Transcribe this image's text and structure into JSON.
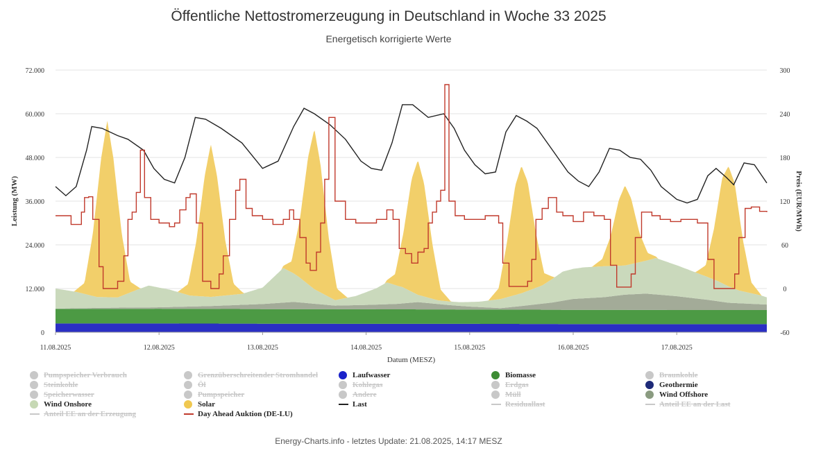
{
  "header": {
    "title": "Öffentliche Nettostromerzeugung in Deutschland in Woche 33 2025",
    "subtitle": "Energetisch korrigierte Werte"
  },
  "footer": {
    "text": "Energy-Charts.info - letztes Update: 21.08.2025, 14:17 MESZ"
  },
  "legend": [
    {
      "label": "Pumpspeicher Verbrauch",
      "active": false,
      "kind": "circle",
      "color": "#c8c8c8"
    },
    {
      "label": "Grenzüberschreitender Stromhandel",
      "active": false,
      "kind": "circle",
      "color": "#c8c8c8"
    },
    {
      "label": "Laufwasser",
      "active": true,
      "kind": "circle",
      "color": "#1a22c9"
    },
    {
      "label": "Biomasse",
      "active": true,
      "kind": "circle",
      "color": "#3d8c34"
    },
    {
      "label": "Braunkohle",
      "active": false,
      "kind": "circle",
      "color": "#c8c8c8"
    },
    {
      "label": "Steinkohle",
      "active": false,
      "kind": "circle",
      "color": "#c8c8c8"
    },
    {
      "label": "Öl",
      "active": false,
      "kind": "circle",
      "color": "#c8c8c8"
    },
    {
      "label": "Kohlegas",
      "active": false,
      "kind": "circle",
      "color": "#c8c8c8"
    },
    {
      "label": "Erdgas",
      "active": false,
      "kind": "circle",
      "color": "#c8c8c8"
    },
    {
      "label": "Geothermie",
      "active": true,
      "kind": "circle",
      "color": "#1e2a78"
    },
    {
      "label": "Speicherwasser",
      "active": false,
      "kind": "circle",
      "color": "#c8c8c8"
    },
    {
      "label": "Pumpspeicher",
      "active": false,
      "kind": "circle",
      "color": "#c8c8c8"
    },
    {
      "label": "Andere",
      "active": false,
      "kind": "circle",
      "color": "#c8c8c8"
    },
    {
      "label": "Müll",
      "active": false,
      "kind": "circle",
      "color": "#c8c8c8"
    },
    {
      "label": "Wind Offshore",
      "active": true,
      "kind": "circle",
      "color": "#8a9b80"
    },
    {
      "label": "Wind Onshore",
      "active": true,
      "kind": "circle",
      "color": "#c6d8b4"
    },
    {
      "label": "Solar",
      "active": true,
      "kind": "circle",
      "color": "#f0c850"
    },
    {
      "label": "Last",
      "active": true,
      "kind": "line",
      "color": "#222222"
    },
    {
      "label": "Residuallast",
      "active": false,
      "kind": "line",
      "color": "#c8c8c8"
    },
    {
      "label": "Anteil EE an der Last",
      "active": false,
      "kind": "line",
      "color": "#c8c8c8"
    },
    {
      "label": "Anteil EE an der Erzeugung",
      "active": false,
      "kind": "line",
      "color": "#c8c8c8"
    },
    {
      "label": "Day Ahead Auktion (DE-LU)",
      "active": true,
      "kind": "line",
      "color": "#c0392b"
    }
  ],
  "chart_data": {
    "type": "area",
    "xlabel": "Datum (MESZ)",
    "ylabel": "Leistung (MW)",
    "y2label": "Preis (EUR/MWh)",
    "ylim": [
      0,
      72000
    ],
    "y2lim": [
      -60,
      300
    ],
    "yticks": [
      "0",
      "12.000",
      "24.000",
      "36.000",
      "48.000",
      "60.000",
      "72.000"
    ],
    "y2ticks": [
      "-60",
      "0",
      "60",
      "120",
      "180",
      "240",
      "300"
    ],
    "xticks": [
      "11.08.2025",
      "12.08.2025",
      "13.08.2025",
      "14.08.2025",
      "15.08.2025",
      "16.08.2025",
      "17.08.2025"
    ],
    "x_days": 6.87,
    "grid": true,
    "colors": {
      "laufwasser": "#2a2fc4",
      "biomasse": "#4c9a44",
      "wind_offshore": "#a3ab98",
      "wind_onshore": "#cad9bc",
      "solar": "#f2cf6a",
      "last": "#222222",
      "preis": "#c0392b"
    },
    "stack_series": {
      "laufwasser": [
        [
          0.0,
          2400
        ],
        [
          1.0,
          2400
        ],
        [
          2.0,
          2350
        ],
        [
          3.0,
          2300
        ],
        [
          4.0,
          2300
        ],
        [
          5.0,
          2250
        ],
        [
          6.0,
          2200
        ],
        [
          6.87,
          2200
        ]
      ],
      "biomasse": [
        [
          0.0,
          4000
        ],
        [
          1.0,
          4050
        ],
        [
          2.0,
          4000
        ],
        [
          3.0,
          4000
        ],
        [
          4.0,
          3950
        ],
        [
          5.0,
          3900
        ],
        [
          6.0,
          3900
        ],
        [
          6.87,
          3900
        ]
      ],
      "wind_offshore": [
        [
          0.0,
          100
        ],
        [
          0.5,
          300
        ],
        [
          1.0,
          400
        ],
        [
          1.5,
          800
        ],
        [
          2.0,
          1400
        ],
        [
          2.3,
          2000
        ],
        [
          2.7,
          1000
        ],
        [
          3.0,
          1200
        ],
        [
          3.3,
          1500
        ],
        [
          3.5,
          2000
        ],
        [
          3.8,
          1200
        ],
        [
          4.0,
          800
        ],
        [
          4.3,
          400
        ],
        [
          4.5,
          1000
        ],
        [
          4.8,
          2000
        ],
        [
          5.0,
          3000
        ],
        [
          5.3,
          3500
        ],
        [
          5.5,
          4200
        ],
        [
          5.7,
          4500
        ],
        [
          6.0,
          3800
        ],
        [
          6.3,
          2800
        ],
        [
          6.5,
          2000
        ],
        [
          6.87,
          1500
        ]
      ],
      "wind_onshore": [
        [
          0.0,
          5500
        ],
        [
          0.2,
          4500
        ],
        [
          0.4,
          3000
        ],
        [
          0.6,
          2800
        ],
        [
          0.8,
          5000
        ],
        [
          0.9,
          6000
        ],
        [
          1.1,
          4800
        ],
        [
          1.3,
          3000
        ],
        [
          1.5,
          2500
        ],
        [
          1.8,
          3000
        ],
        [
          2.0,
          4500
        ],
        [
          2.1,
          7000
        ],
        [
          2.2,
          9500
        ],
        [
          2.35,
          7000
        ],
        [
          2.5,
          4000
        ],
        [
          2.7,
          1500
        ],
        [
          2.9,
          2500
        ],
        [
          3.1,
          4500
        ],
        [
          3.2,
          6000
        ],
        [
          3.35,
          4500
        ],
        [
          3.5,
          2000
        ],
        [
          3.7,
          1000
        ],
        [
          3.9,
          1000
        ],
        [
          4.1,
          1500
        ],
        [
          4.3,
          2500
        ],
        [
          4.5,
          3500
        ],
        [
          4.7,
          5000
        ],
        [
          4.9,
          8000
        ],
        [
          5.1,
          8500
        ],
        [
          5.3,
          8500
        ],
        [
          5.5,
          8000
        ],
        [
          5.7,
          9000
        ],
        [
          5.8,
          10000
        ],
        [
          6.0,
          8500
        ],
        [
          6.2,
          7000
        ],
        [
          6.4,
          5500
        ],
        [
          6.6,
          3500
        ],
        [
          6.8,
          2500
        ],
        [
          6.87,
          2000
        ]
      ],
      "solar": [
        [
          0.0,
          0
        ],
        [
          0.18,
          0
        ],
        [
          0.28,
          3000
        ],
        [
          0.36,
          17000
        ],
        [
          0.44,
          38000
        ],
        [
          0.5,
          48500
        ],
        [
          0.56,
          38000
        ],
        [
          0.64,
          17000
        ],
        [
          0.72,
          3000
        ],
        [
          0.82,
          0
        ],
        [
          1.18,
          0
        ],
        [
          1.28,
          3000
        ],
        [
          1.36,
          15000
        ],
        [
          1.44,
          33000
        ],
        [
          1.5,
          42000
        ],
        [
          1.56,
          33000
        ],
        [
          1.64,
          15000
        ],
        [
          1.72,
          3000
        ],
        [
          1.82,
          0
        ],
        [
          2.18,
          0
        ],
        [
          2.28,
          3000
        ],
        [
          2.36,
          16000
        ],
        [
          2.44,
          35000
        ],
        [
          2.5,
          44000
        ],
        [
          2.56,
          35000
        ],
        [
          2.64,
          16000
        ],
        [
          2.72,
          3000
        ],
        [
          2.82,
          0
        ],
        [
          3.18,
          0
        ],
        [
          3.28,
          3000
        ],
        [
          3.36,
          15000
        ],
        [
          3.44,
          31000
        ],
        [
          3.5,
          37000
        ],
        [
          3.56,
          31000
        ],
        [
          3.64,
          15000
        ],
        [
          3.72,
          3000
        ],
        [
          3.82,
          0
        ],
        [
          4.18,
          0
        ],
        [
          4.28,
          3000
        ],
        [
          4.36,
          15000
        ],
        [
          4.44,
          30000
        ],
        [
          4.5,
          35000
        ],
        [
          4.56,
          30000
        ],
        [
          4.64,
          15000
        ],
        [
          4.72,
          3000
        ],
        [
          4.82,
          0
        ],
        [
          5.18,
          0
        ],
        [
          5.28,
          2000
        ],
        [
          5.36,
          8000
        ],
        [
          5.44,
          18000
        ],
        [
          5.5,
          22000
        ],
        [
          5.56,
          18000
        ],
        [
          5.64,
          8000
        ],
        [
          5.72,
          2000
        ],
        [
          5.82,
          0
        ],
        [
          6.18,
          0
        ],
        [
          6.28,
          3000
        ],
        [
          6.36,
          14000
        ],
        [
          6.44,
          29000
        ],
        [
          6.5,
          33000
        ],
        [
          6.56,
          29000
        ],
        [
          6.64,
          14000
        ],
        [
          6.72,
          3000
        ],
        [
          6.82,
          0
        ],
        [
          6.87,
          0
        ]
      ]
    },
    "last": [
      [
        0.0,
        40000
      ],
      [
        0.1,
        37500
      ],
      [
        0.2,
        40000
      ],
      [
        0.3,
        50000
      ],
      [
        0.35,
        56500
      ],
      [
        0.45,
        56000
      ],
      [
        0.6,
        54000
      ],
      [
        0.7,
        53000
      ],
      [
        0.85,
        50000
      ],
      [
        0.95,
        45000
      ],
      [
        1.05,
        42000
      ],
      [
        1.15,
        41000
      ],
      [
        1.25,
        48000
      ],
      [
        1.35,
        59000
      ],
      [
        1.45,
        58500
      ],
      [
        1.6,
        56000
      ],
      [
        1.8,
        52000
      ],
      [
        2.0,
        45000
      ],
      [
        2.15,
        47000
      ],
      [
        2.3,
        56500
      ],
      [
        2.4,
        61500
      ],
      [
        2.5,
        60000
      ],
      [
        2.65,
        57000
      ],
      [
        2.8,
        53000
      ],
      [
        2.95,
        47000
      ],
      [
        3.05,
        45000
      ],
      [
        3.15,
        44500
      ],
      [
        3.25,
        52000
      ],
      [
        3.35,
        62500
      ],
      [
        3.45,
        62500
      ],
      [
        3.6,
        59000
      ],
      [
        3.75,
        60000
      ],
      [
        3.85,
        56000
      ],
      [
        3.95,
        50000
      ],
      [
        4.05,
        46000
      ],
      [
        4.15,
        43500
      ],
      [
        4.25,
        44000
      ],
      [
        4.35,
        55000
      ],
      [
        4.45,
        59500
      ],
      [
        4.55,
        58000
      ],
      [
        4.65,
        56000
      ],
      [
        4.8,
        50000
      ],
      [
        4.95,
        44000
      ],
      [
        5.05,
        41500
      ],
      [
        5.15,
        40000
      ],
      [
        5.25,
        44000
      ],
      [
        5.35,
        50500
      ],
      [
        5.45,
        50000
      ],
      [
        5.55,
        48000
      ],
      [
        5.65,
        47500
      ],
      [
        5.75,
        44500
      ],
      [
        5.85,
        40000
      ],
      [
        6.0,
        36500
      ],
      [
        6.1,
        35500
      ],
      [
        6.2,
        36500
      ],
      [
        6.3,
        43000
      ],
      [
        6.38,
        45000
      ],
      [
        6.48,
        42500
      ],
      [
        6.55,
        40500
      ],
      [
        6.65,
        46500
      ],
      [
        6.75,
        46000
      ],
      [
        6.87,
        41000
      ]
    ],
    "preis": [
      [
        0.0,
        100
      ],
      [
        0.15,
        88
      ],
      [
        0.25,
        105
      ],
      [
        0.28,
        125
      ],
      [
        0.32,
        126
      ],
      [
        0.36,
        95
      ],
      [
        0.42,
        30
      ],
      [
        0.46,
        0
      ],
      [
        0.56,
        0
      ],
      [
        0.6,
        10
      ],
      [
        0.66,
        45
      ],
      [
        0.7,
        95
      ],
      [
        0.74,
        105
      ],
      [
        0.78,
        132
      ],
      [
        0.82,
        190
      ],
      [
        0.86,
        125
      ],
      [
        0.92,
        95
      ],
      [
        1.0,
        90
      ],
      [
        1.1,
        85
      ],
      [
        1.15,
        90
      ],
      [
        1.2,
        108
      ],
      [
        1.26,
        125
      ],
      [
        1.3,
        130
      ],
      [
        1.36,
        90
      ],
      [
        1.42,
        10
      ],
      [
        1.5,
        0
      ],
      [
        1.58,
        20
      ],
      [
        1.62,
        45
      ],
      [
        1.68,
        95
      ],
      [
        1.74,
        135
      ],
      [
        1.78,
        150
      ],
      [
        1.84,
        110
      ],
      [
        1.9,
        100
      ],
      [
        2.0,
        95
      ],
      [
        2.1,
        88
      ],
      [
        2.2,
        95
      ],
      [
        2.26,
        108
      ],
      [
        2.3,
        95
      ],
      [
        2.36,
        70
      ],
      [
        2.42,
        35
      ],
      [
        2.46,
        25
      ],
      [
        2.52,
        50
      ],
      [
        2.56,
        90
      ],
      [
        2.6,
        150
      ],
      [
        2.64,
        235
      ],
      [
        2.7,
        120
      ],
      [
        2.8,
        95
      ],
      [
        2.9,
        90
      ],
      [
        3.0,
        90
      ],
      [
        3.1,
        95
      ],
      [
        3.2,
        108
      ],
      [
        3.26,
        95
      ],
      [
        3.32,
        55
      ],
      [
        3.38,
        48
      ],
      [
        3.44,
        35
      ],
      [
        3.5,
        50
      ],
      [
        3.56,
        55
      ],
      [
        3.6,
        90
      ],
      [
        3.64,
        105
      ],
      [
        3.68,
        120
      ],
      [
        3.72,
        135
      ],
      [
        3.76,
        280
      ],
      [
        3.8,
        120
      ],
      [
        3.86,
        100
      ],
      [
        3.95,
        95
      ],
      [
        4.05,
        95
      ],
      [
        4.15,
        100
      ],
      [
        4.2,
        100
      ],
      [
        4.28,
        90
      ],
      [
        4.32,
        35
      ],
      [
        4.38,
        3
      ],
      [
        4.48,
        3
      ],
      [
        4.56,
        10
      ],
      [
        4.6,
        40
      ],
      [
        4.64,
        95
      ],
      [
        4.7,
        110
      ],
      [
        4.76,
        125
      ],
      [
        4.84,
        105
      ],
      [
        4.9,
        100
      ],
      [
        5.0,
        92
      ],
      [
        5.1,
        105
      ],
      [
        5.2,
        100
      ],
      [
        5.24,
        100
      ],
      [
        5.3,
        95
      ],
      [
        5.36,
        32
      ],
      [
        5.42,
        2
      ],
      [
        5.5,
        2
      ],
      [
        5.56,
        20
      ],
      [
        5.6,
        70
      ],
      [
        5.66,
        105
      ],
      [
        5.7,
        105
      ],
      [
        5.76,
        100
      ],
      [
        5.84,
        95
      ],
      [
        5.94,
        92
      ],
      [
        6.04,
        95
      ],
      [
        6.14,
        95
      ],
      [
        6.2,
        90
      ],
      [
        6.24,
        90
      ],
      [
        6.3,
        40
      ],
      [
        6.36,
        0
      ],
      [
        6.5,
        0
      ],
      [
        6.56,
        20
      ],
      [
        6.6,
        70
      ],
      [
        6.66,
        110
      ],
      [
        6.72,
        112
      ],
      [
        6.8,
        106
      ],
      [
        6.87,
        105
      ]
    ]
  }
}
